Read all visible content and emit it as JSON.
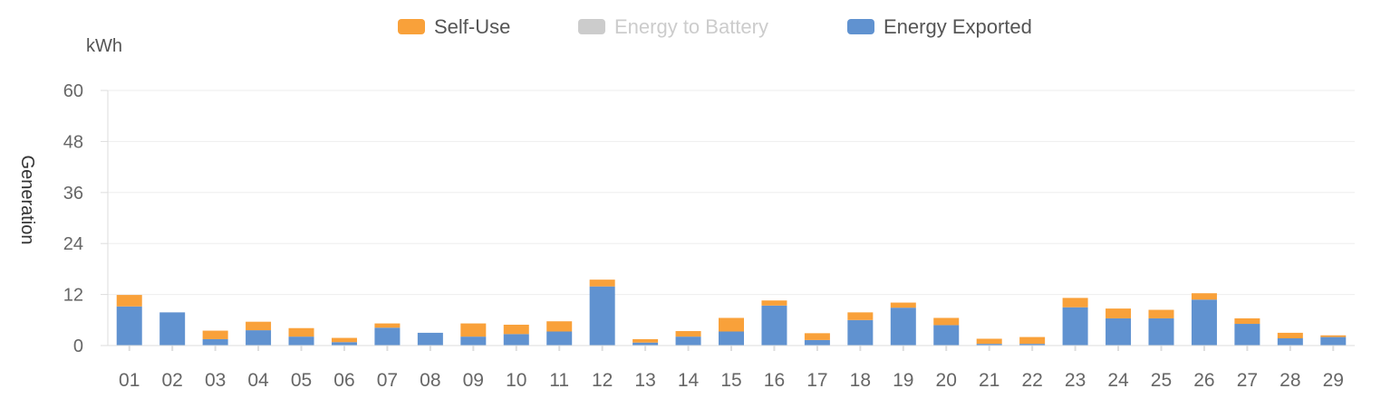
{
  "chart_data": {
    "type": "bar",
    "stacked": true,
    "unit_label": "kWh",
    "ylabel": "Generation",
    "xlabel": "",
    "title": "",
    "ylim": [
      0,
      60
    ],
    "yticks": [
      0,
      12,
      24,
      36,
      48,
      60
    ],
    "grid": true,
    "legend_position": "top-center",
    "categories": [
      "01",
      "02",
      "03",
      "04",
      "05",
      "06",
      "07",
      "08",
      "09",
      "10",
      "11",
      "12",
      "13",
      "14",
      "15",
      "16",
      "17",
      "18",
      "19",
      "20",
      "21",
      "22",
      "23",
      "24",
      "25",
      "26",
      "27",
      "28",
      "29"
    ],
    "series": [
      {
        "name": "Energy Exported",
        "color": "#6092D0",
        "legend_active": true,
        "values": [
          9.2,
          7.8,
          1.5,
          3.6,
          2.1,
          0.8,
          4.2,
          3.0,
          2.1,
          2.7,
          3.3,
          13.9,
          0.7,
          2.1,
          3.3,
          9.4,
          1.3,
          6.0,
          8.9,
          4.8,
          0.4,
          0.4,
          9.0,
          6.4,
          6.4,
          10.8,
          5.1,
          1.7,
          2.0
        ]
      },
      {
        "name": "Energy to Battery",
        "color": "#CCCCCC",
        "legend_active": false,
        "values": [
          0,
          0,
          0,
          0,
          0,
          0,
          0,
          0,
          0,
          0,
          0,
          0,
          0,
          0,
          0,
          0,
          0,
          0,
          0,
          0,
          0,
          0,
          0,
          0,
          0,
          0,
          0,
          0,
          0
        ]
      },
      {
        "name": "Self-Use",
        "color": "#F9A13A",
        "legend_active": true,
        "values": [
          2.7,
          0,
          2.0,
          2.0,
          2.0,
          1.0,
          1.0,
          0,
          3.1,
          2.2,
          2.4,
          1.6,
          0.8,
          1.3,
          3.2,
          1.2,
          1.6,
          1.8,
          1.2,
          1.7,
          1.2,
          1.6,
          2.2,
          2.3,
          2.0,
          1.5,
          1.3,
          1.3,
          0.4
        ]
      }
    ],
    "legend_order": [
      "Self-Use",
      "Energy to Battery",
      "Energy Exported"
    ],
    "legend_disabled_text_color": "#CCCCCC",
    "legend_text_color": "#555555",
    "axis_text_color": "#666666",
    "grid_color": "#EEEEEE"
  }
}
